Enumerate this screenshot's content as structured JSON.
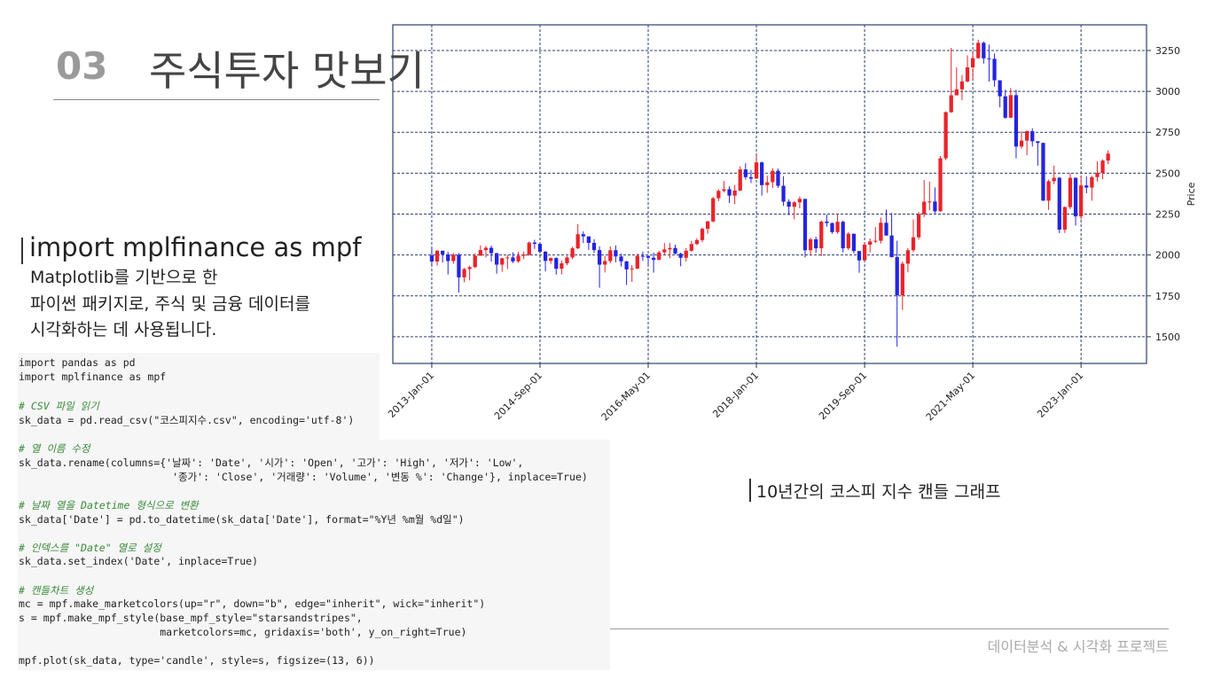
{
  "header": {
    "number": "03",
    "title": "주식투자 맛보기"
  },
  "section": {
    "heading": "import mplfinance as mpf",
    "description": [
      "Matplotlib를 기반으로 한",
      "파이썬 패키지로, 주식 및 금융 데이터를",
      "시각화하는 데 사용됩니다."
    ]
  },
  "code": [
    [
      "import pandas as pd",
      "import mplfinance as mpf"
    ],
    [
      "# CSV 파일 읽기",
      "sk_data = pd.read_csv(\"코스피지수.csv\", encoding='utf-8')"
    ],
    [
      "# 열 이름 수정",
      "sk_data.rename(columns={'날짜': 'Date', '시가': 'Open', '고가': 'High', '저가': 'Low',",
      "                         '종가': 'Close', '거래량': 'Volume', '변동 %': 'Change'}, inplace=True)"
    ],
    [
      "# 날짜 열을 Datetime 형식으로 변환",
      "sk_data['Date'] = pd.to_datetime(sk_data['Date'], format=\"%Y년 %m월 %d일\")"
    ],
    [
      "# 인덱스를 \"Date\" 열로 설정",
      "sk_data.set_index('Date', inplace=True)"
    ],
    [
      "# 캔들차트 생성",
      "mc = mpf.make_marketcolors(up=\"r\", down=\"b\", edge=\"inherit\", wick=\"inherit\")",
      "s = mpf.make_mpf_style(base_mpf_style=\"starsandstripes\",",
      "                       marketcolors=mc, gridaxis='both', y_on_right=True)"
    ],
    [
      "mpf.plot(sk_data, type='candle', style=s, figsize=(13, 6))"
    ]
  ],
  "caption": "10년간의 코스피 지수 캔들 그래프",
  "footer": "데이터분석 & 시각화 프로젝트",
  "chart_data": {
    "type": "candlestick",
    "ylabel": "Price",
    "up_color": "#e8242a",
    "down_color": "#2424e0",
    "grid": true,
    "y_axis_side": "right",
    "xlim": [
      -7.2,
      132.1
    ],
    "xticks": [
      {
        "value": 0,
        "label": "2013-Jan-01"
      },
      {
        "value": 20,
        "label": "2014-Sep-01"
      },
      {
        "value": 40,
        "label": "2016-May-01"
      },
      {
        "value": 60,
        "label": "2018-Jan-01"
      },
      {
        "value": 80,
        "label": "2019-Sep-01"
      },
      {
        "value": 100,
        "label": "2021-May-01"
      },
      {
        "value": 120,
        "label": "2023-Jan-01"
      }
    ],
    "ylim": [
      1337,
      3407
    ],
    "yticks": [
      1500,
      1750,
      2000,
      2250,
      2500,
      2750,
      3000,
      3250
    ],
    "open": [
      1997,
      1960,
      2026,
      2004,
      1963,
      2001,
      1863,
      1914,
      1926,
      1996,
      2030,
      2044,
      2011,
      1941,
      1980,
      1985,
      1961,
      1995,
      2002,
      2076,
      2068,
      2020,
      1964,
      1981,
      1916,
      1949,
      1985,
      2041,
      2127,
      2114,
      2074,
      2030,
      1941,
      1963,
      2029,
      1991,
      1961,
      1912,
      1916,
      1995,
      1994,
      1983,
      1970,
      2016,
      2034,
      2043,
      2008,
      1983,
      2026,
      2067,
      2091,
      2160,
      2205,
      2347,
      2392,
      2402,
      2363,
      2394,
      2523,
      2476,
      2467,
      2566,
      2427,
      2445,
      2515,
      2423,
      2326,
      2295,
      2322,
      2343,
      2029,
      2096,
      2041,
      2204,
      2195,
      2140,
      2203,
      2041,
      2130,
      2024,
      1967,
      2063,
      2083,
      2087,
      2197,
      2119,
      1987,
      1754,
      1947,
      2029,
      2108,
      2249,
      2326,
      2327,
      2267,
      2591,
      2873,
      2976,
      3013,
      3061,
      3147,
      3203,
      3297,
      3202,
      3199,
      3068,
      2970,
      2839,
      2977,
      2663,
      2699,
      2757,
      2695,
      2685,
      2332,
      2451,
      2472,
      2155,
      2293,
      2472,
      2236,
      2425,
      2412,
      2476,
      2501,
      2577
    ],
    "high": [
      2042,
      2030,
      2027,
      2019,
      2012,
      2012,
      1922,
      1935,
      2011,
      2059,
      2055,
      2058,
      2013,
      1983,
      2000,
      2016,
      2019,
      2021,
      2082,
      2093,
      2079,
      2025,
      1985,
      1986,
      1965,
      1994,
      2051,
      2189,
      2145,
      2110,
      2097,
      2053,
      1994,
      2053,
      2058,
      2008,
      1964,
      1938,
      2008,
      2021,
      2000,
      2015,
      2026,
      2073,
      2073,
      2063,
      2014,
      2043,
      2086,
      2103,
      2167,
      2210,
      2355,
      2402,
      2453,
      2420,
      2428,
      2542,
      2561,
      2520,
      2607,
      2571,
      2484,
      2530,
      2528,
      2482,
      2340,
      2330,
      2358,
      2341,
      2105,
      2112,
      2211,
      2246,
      2198,
      2252,
      2211,
      2140,
      2130,
      2024,
      2078,
      2101,
      2171,
      2229,
      2277,
      2257,
      2087,
      1960,
      2042,
      2217,
      2264,
      2458,
      2449,
      2413,
      2605,
      2878,
      3266,
      3146,
      3100,
      3220,
      3249,
      3316,
      3305,
      3286,
      3231,
      3058,
      3010,
      3021,
      3010,
      2757,
      2761,
      2775,
      2696,
      2687,
      2461,
      2546,
      2477,
      2297,
      2501,
      2474,
      2485,
      2480,
      2484,
      2572,
      2585,
      2640
    ],
    "low": [
      1934,
      1935,
      1954,
      1881,
      1946,
      1770,
      1833,
      1845,
      1920,
      1994,
      1985,
      1960,
      1886,
      1897,
      1914,
      1951,
      1952,
      1974,
      1995,
      2038,
      2015,
      1900,
      1945,
      1880,
      1882,
      1938,
      1975,
      2035,
      2074,
      2031,
      2012,
      1800,
      1893,
      1950,
      1955,
      1930,
      1817,
      1835,
      1915,
      1965,
      1935,
      1892,
      1968,
      2003,
      1980,
      2004,
      1931,
      1960,
      2020,
      2060,
      2078,
      2130,
      2200,
      2329,
      2382,
      2318,
      2311,
      2390,
      2461,
      2440,
      2465,
      2363,
      2380,
      2410,
      2410,
      2300,
      2244,
      2218,
      2285,
      1985,
      1996,
      2013,
      1993,
      2173,
      2130,
      2130,
      2016,
      2030,
      2010,
      1891,
      1967,
      2016,
      2073,
      2070,
      2118,
      1985,
      1439,
      1664,
      1894,
      2017,
      2094,
      2232,
      2273,
      2255,
      2265,
      2580,
      2869,
      2978,
      2946,
      3055,
      3075,
      3200,
      3170,
      3060,
      3029,
      2902,
      2833,
      2837,
      2591,
      2650,
      2610,
      2663,
      2546,
      2332,
      2276,
      2432,
      2134,
      2135,
      2281,
      2180,
      2218,
      2377,
      2332,
      2449,
      2463,
      2555
    ],
    "close": [
      1960,
      2026,
      2004,
      1963,
      2001,
      1863,
      1914,
      1926,
      1996,
      2030,
      2044,
      2011,
      1941,
      1980,
      1985,
      1961,
      1995,
      2002,
      2076,
      2068,
      2020,
      1964,
      1981,
      1916,
      1949,
      1985,
      2041,
      2127,
      2114,
      2074,
      2030,
      1941,
      1963,
      2029,
      1991,
      1961,
      1912,
      1916,
      1995,
      1994,
      1983,
      1970,
      2016,
      2034,
      2043,
      2008,
      1983,
      2026,
      2067,
      2091,
      2160,
      2205,
      2347,
      2392,
      2402,
      2363,
      2394,
      2523,
      2476,
      2467,
      2566,
      2427,
      2445,
      2515,
      2423,
      2326,
      2295,
      2322,
      2343,
      2029,
      2096,
      2041,
      2204,
      2195,
      2140,
      2203,
      2041,
      2130,
      2024,
      1967,
      2063,
      2083,
      2087,
      2197,
      2119,
      1987,
      1754,
      1947,
      2029,
      2108,
      2249,
      2326,
      2327,
      2267,
      2591,
      2873,
      2976,
      3013,
      3061,
      3147,
      3203,
      3297,
      3202,
      3199,
      3068,
      2970,
      2839,
      2977,
      2663,
      2699,
      2757,
      2695,
      2685,
      2332,
      2451,
      2472,
      2155,
      2293,
      2472,
      2236,
      2425,
      2412,
      2476,
      2501,
      2577,
      2620
    ]
  }
}
